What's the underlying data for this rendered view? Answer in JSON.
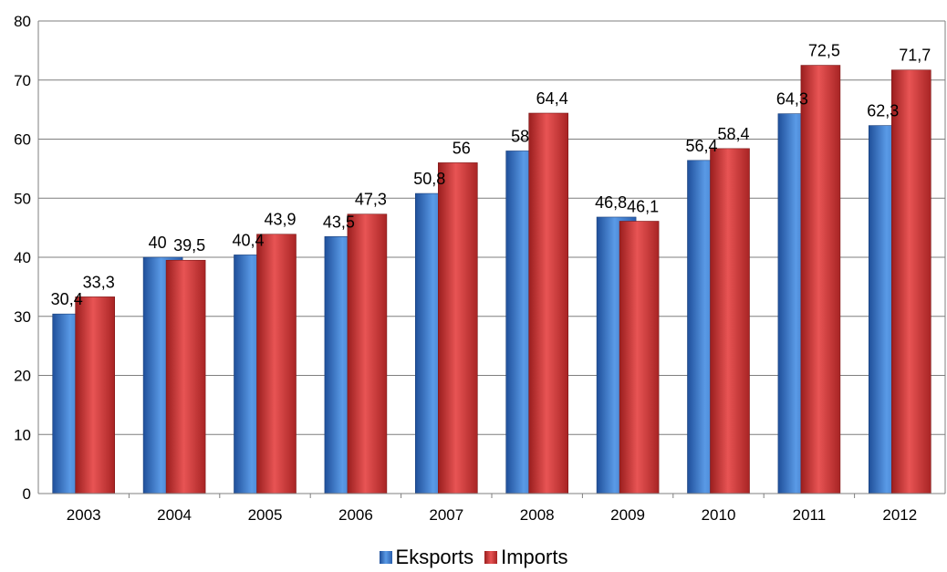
{
  "chart_data": {
    "type": "bar",
    "categories": [
      "2003",
      "2004",
      "2005",
      "2006",
      "2007",
      "2008",
      "2009",
      "2010",
      "2011",
      "2012"
    ],
    "series": [
      {
        "name": "Eksports",
        "values": [
          30.4,
          40,
          40.4,
          43.5,
          50.8,
          58,
          46.8,
          56.4,
          64.3,
          62.3
        ],
        "labels": [
          "30,4",
          "40",
          "40,4",
          "43,5",
          "50,8",
          "58",
          "46,8",
          "56,4",
          "64,3",
          "62,3"
        ],
        "color": "#3f7fd0"
      },
      {
        "name": "Imports",
        "values": [
          33.3,
          39.5,
          43.9,
          47.3,
          56,
          64.4,
          46.1,
          58.4,
          72.5,
          71.7
        ],
        "labels": [
          "33,3",
          "39,5",
          "43,9",
          "47,3",
          "56",
          "64,4",
          "46,1",
          "58,4",
          "72,5",
          "71,7"
        ],
        "color": "#d43a3a"
      }
    ],
    "y_ticks": [
      "0",
      "10",
      "20",
      "30",
      "40",
      "50",
      "60",
      "70",
      "80"
    ],
    "ylim": [
      0,
      80
    ],
    "grid": true,
    "legend_position": "bottom"
  }
}
